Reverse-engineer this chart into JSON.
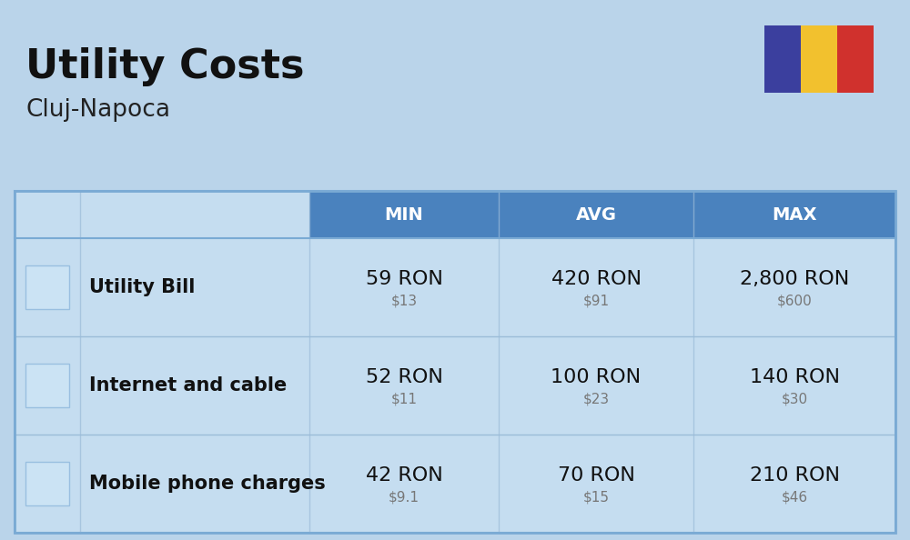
{
  "title": "Utility Costs",
  "subtitle": "Cluj-Napoca",
  "background_color": "#bad4ea",
  "table_bg_light": "#c5ddf0",
  "table_bg_header": "#4a82be",
  "table_header_text": "#ffffff",
  "table_border": "#7aaad4",
  "row_separator": "#9bbcd8",
  "columns": [
    "MIN",
    "AVG",
    "MAX"
  ],
  "rows": [
    {
      "label": "Utility Bill",
      "min_ron": "59 RON",
      "min_usd": "$13",
      "avg_ron": "420 RON",
      "avg_usd": "$91",
      "max_ron": "2,800 RON",
      "max_usd": "$600"
    },
    {
      "label": "Internet and cable",
      "min_ron": "52 RON",
      "min_usd": "$11",
      "avg_ron": "100 RON",
      "avg_usd": "$23",
      "max_ron": "140 RON",
      "max_usd": "$30"
    },
    {
      "label": "Mobile phone charges",
      "min_ron": "42 RON",
      "min_usd": "$9.1",
      "avg_ron": "70 RON",
      "avg_usd": "$15",
      "max_ron": "210 RON",
      "max_usd": "$46"
    }
  ],
  "flag_colors": [
    "#3b3f9e",
    "#f2c12e",
    "#d0312d"
  ],
  "ron_fontsize": 16,
  "usd_fontsize": 11,
  "label_fontsize": 15,
  "header_fontsize": 14,
  "title_fontsize": 32,
  "subtitle_fontsize": 19
}
